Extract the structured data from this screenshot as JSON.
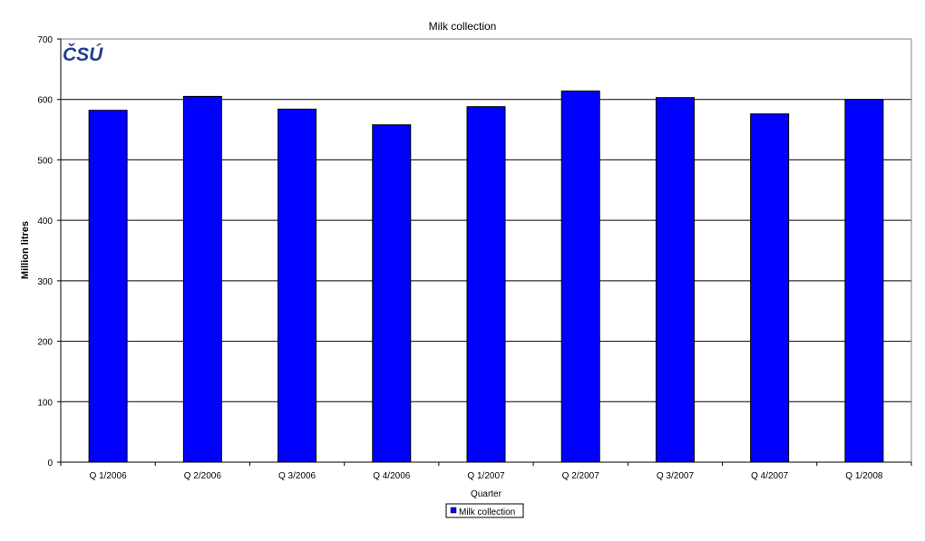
{
  "logo": {
    "text": "ČSÚ"
  },
  "colors": {
    "bar": "#0000FF",
    "bar_stroke": "#000000",
    "logo": "#1F3F8F",
    "grid": "#000000"
  },
  "chart_data": {
    "type": "bar",
    "title": "Milk collection",
    "xlabel": "Quarter",
    "ylabel": "Million litres",
    "ylim": [
      0,
      700
    ],
    "yticks": [
      0,
      100,
      200,
      300,
      400,
      500,
      600,
      700
    ],
    "grid": true,
    "legend_position": "bottom",
    "categories": [
      "Q 1/2006",
      "Q 2/2006",
      "Q 3/2006",
      "Q 4/2006",
      "Q 1/2007",
      "Q 2/2007",
      "Q 3/2007",
      "Q 4/2007",
      "Q 1/2008"
    ],
    "series": [
      {
        "name": "Milk collection",
        "values": [
          582,
          605,
          584,
          558,
          588,
          614,
          603,
          576,
          600
        ]
      }
    ]
  }
}
